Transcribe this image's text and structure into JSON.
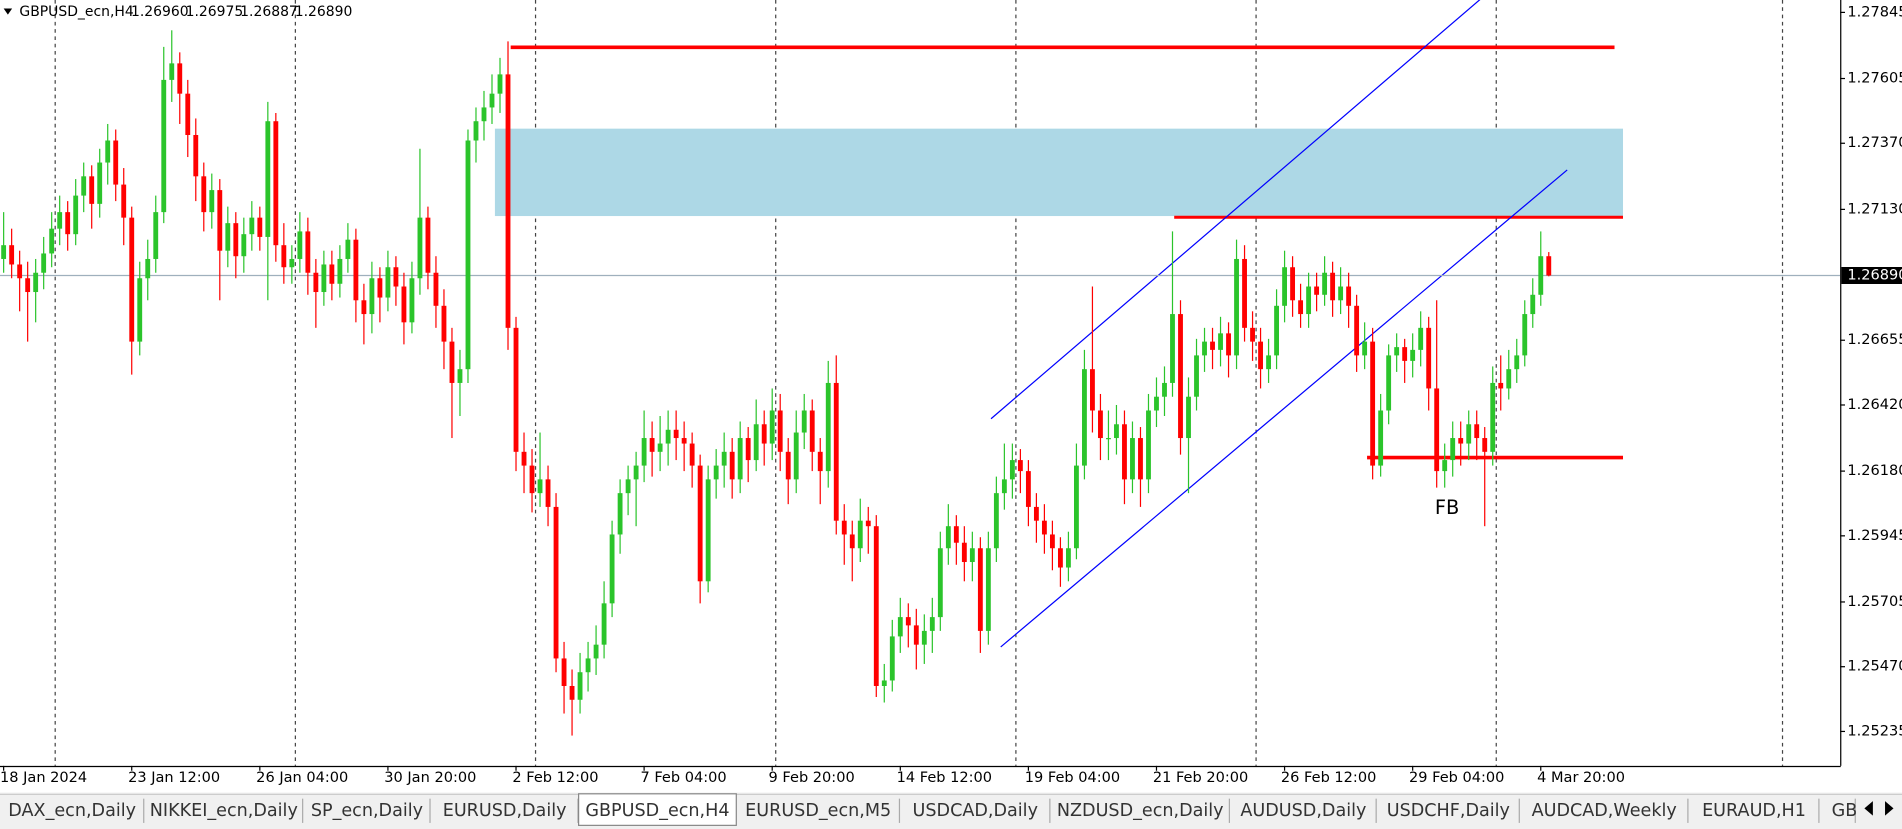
{
  "header": {
    "symbol": "GBPUSD_ecn,H4",
    "open": "1.26960",
    "high": "1.26975",
    "low": "1.26887",
    "close": "1.26890"
  },
  "chart_data": {
    "type": "candlestick",
    "up_color": "#2bc42b",
    "down_color": "#ff0000",
    "annotation": "FB",
    "ylim": [
      1.2511,
      1.2789
    ],
    "yticks": [
      1.27845,
      1.27605,
      {
        "value": 1.2737,
        "label": "1.27370"
      },
      {
        "value": 1.2713,
        "label": "1.27130"
      },
      1.26655,
      {
        "value": 1.2642,
        "label": "1.26420"
      },
      {
        "value": 1.2618,
        "label": "1.26180"
      },
      1.25945,
      1.25705,
      {
        "value": 1.2547,
        "label": "1.25470"
      },
      1.25235
    ],
    "current_price": {
      "value": 1.2689,
      "label": "1.26890"
    },
    "categories": [
      "18 Jan 2024",
      null,
      null,
      null,
      null,
      null,
      null,
      null,
      null,
      null,
      null,
      null,
      null,
      null,
      null,
      null,
      "23 Jan 12:00",
      null,
      null,
      null,
      null,
      null,
      null,
      null,
      null,
      null,
      null,
      null,
      null,
      null,
      null,
      null,
      "26 Jan 04:00",
      null,
      null,
      null,
      null,
      null,
      null,
      null,
      null,
      null,
      null,
      null,
      null,
      null,
      null,
      null,
      "30 Jan 20:00",
      null,
      null,
      null,
      null,
      null,
      null,
      null,
      null,
      null,
      null,
      null,
      null,
      null,
      null,
      null,
      "2 Feb 12:00",
      null,
      null,
      null,
      null,
      null,
      null,
      null,
      null,
      null,
      null,
      null,
      null,
      null,
      null,
      null,
      "7 Feb 04:00",
      null,
      null,
      null,
      null,
      null,
      null,
      null,
      null,
      null,
      null,
      null,
      null,
      null,
      null,
      null,
      "9 Feb 20:00",
      null,
      null,
      null,
      null,
      null,
      null,
      null,
      null,
      null,
      null,
      null,
      null,
      null,
      null,
      null,
      "14 Feb 12:00",
      null,
      null,
      null,
      null,
      null,
      null,
      null,
      null,
      null,
      null,
      null,
      null,
      null,
      null,
      null,
      "19 Feb 04:00",
      null,
      null,
      null,
      null,
      null,
      null,
      null,
      null,
      null,
      null,
      null,
      null,
      null,
      null,
      null,
      "21 Feb 20:00",
      null,
      null,
      null,
      null,
      null,
      null,
      null,
      null,
      null,
      null,
      null,
      null,
      null,
      null,
      null,
      "26 Feb 12:00",
      null,
      null,
      null,
      null,
      null,
      null,
      null,
      null,
      null,
      null,
      null,
      null,
      null,
      null,
      null,
      "29 Feb 04:00",
      null,
      null,
      null,
      null,
      null,
      null,
      null,
      null,
      null,
      null,
      null,
      null,
      null,
      null,
      null,
      "4 Mar 20:00",
      null
    ],
    "candles": [
      [
        1.2695,
        1.2712,
        1.269,
        1.27
      ],
      [
        1.27,
        1.2706,
        1.2688,
        1.2693
      ],
      [
        1.2693,
        1.2698,
        1.2676,
        1.2688
      ],
      [
        1.2688,
        1.2694,
        1.2665,
        1.2683
      ],
      [
        1.2683,
        1.2695,
        1.2672,
        1.269
      ],
      [
        1.269,
        1.2703,
        1.2684,
        1.2697
      ],
      [
        1.2697,
        1.2712,
        1.2692,
        1.2706
      ],
      [
        1.2706,
        1.2718,
        1.27,
        1.2712
      ],
      [
        1.2712,
        1.2716,
        1.2698,
        1.2704
      ],
      [
        1.2704,
        1.2724,
        1.27,
        1.2718
      ],
      [
        1.2718,
        1.273,
        1.2712,
        1.2725
      ],
      [
        1.2725,
        1.2729,
        1.2706,
        1.2715
      ],
      [
        1.2715,
        1.2735,
        1.271,
        1.273
      ],
      [
        1.273,
        1.2744,
        1.2722,
        1.2738
      ],
      [
        1.2738,
        1.2742,
        1.2716,
        1.2722
      ],
      [
        1.2722,
        1.2728,
        1.27,
        1.271
      ],
      [
        1.271,
        1.2714,
        1.2653,
        1.2665
      ],
      [
        1.2665,
        1.2694,
        1.266,
        1.2688
      ],
      [
        1.2688,
        1.2702,
        1.268,
        1.2695
      ],
      [
        1.2695,
        1.2718,
        1.269,
        1.2712
      ],
      [
        1.2712,
        1.2772,
        1.2708,
        1.276
      ],
      [
        1.276,
        1.2778,
        1.2752,
        1.2766
      ],
      [
        1.2766,
        1.277,
        1.2744,
        1.2755
      ],
      [
        1.2755,
        1.276,
        1.2732,
        1.274
      ],
      [
        1.274,
        1.2746,
        1.2716,
        1.2725
      ],
      [
        1.2725,
        1.273,
        1.2705,
        1.2712
      ],
      [
        1.2712,
        1.2726,
        1.2706,
        1.272
      ],
      [
        1.272,
        1.2724,
        1.268,
        1.2698
      ],
      [
        1.2698,
        1.2714,
        1.2692,
        1.2708
      ],
      [
        1.2708,
        1.2712,
        1.2688,
        1.2696
      ],
      [
        1.2696,
        1.271,
        1.269,
        1.2704
      ],
      [
        1.2704,
        1.2716,
        1.2698,
        1.271
      ],
      [
        1.271,
        1.2714,
        1.2698,
        1.2703
      ],
      [
        1.2703,
        1.2752,
        1.268,
        1.2745
      ],
      [
        1.2745,
        1.2748,
        1.2694,
        1.27
      ],
      [
        1.27,
        1.2708,
        1.2686,
        1.2692
      ],
      [
        1.2692,
        1.27,
        1.2686,
        1.2695
      ],
      [
        1.2695,
        1.2712,
        1.269,
        1.2705
      ],
      [
        1.2705,
        1.271,
        1.2682,
        1.269
      ],
      [
        1.269,
        1.2695,
        1.267,
        1.2683
      ],
      [
        1.2683,
        1.2698,
        1.2678,
        1.2693
      ],
      [
        1.2693,
        1.2698,
        1.268,
        1.2686
      ],
      [
        1.2686,
        1.27,
        1.2681,
        1.2695
      ],
      [
        1.2695,
        1.2708,
        1.269,
        1.2702
      ],
      [
        1.2702,
        1.2706,
        1.2672,
        1.268
      ],
      [
        1.268,
        1.2686,
        1.2664,
        1.2675
      ],
      [
        1.2675,
        1.2694,
        1.2668,
        1.2688
      ],
      [
        1.2688,
        1.2692,
        1.2672,
        1.2681
      ],
      [
        1.2681,
        1.2698,
        1.2676,
        1.2692
      ],
      [
        1.2692,
        1.2696,
        1.2678,
        1.2685
      ],
      [
        1.2685,
        1.269,
        1.2664,
        1.2672
      ],
      [
        1.2672,
        1.2694,
        1.2668,
        1.2688
      ],
      [
        1.2688,
        1.2735,
        1.2682,
        1.271
      ],
      [
        1.271,
        1.2714,
        1.2684,
        1.269
      ],
      [
        1.269,
        1.2696,
        1.267,
        1.2678
      ],
      [
        1.2678,
        1.2684,
        1.2655,
        1.2665
      ],
      [
        1.2665,
        1.267,
        1.263,
        1.265
      ],
      [
        1.265,
        1.2662,
        1.2638,
        1.2655
      ],
      [
        1.2655,
        1.2742,
        1.265,
        1.2738
      ],
      [
        1.2738,
        1.275,
        1.273,
        1.2745
      ],
      [
        1.2745,
        1.2756,
        1.2738,
        1.275
      ],
      [
        1.275,
        1.2762,
        1.2744,
        1.2755
      ],
      [
        1.2755,
        1.2768,
        1.2748,
        1.2762
      ],
      [
        1.2762,
        1.2774,
        1.2662,
        1.267
      ],
      [
        1.267,
        1.2674,
        1.2618,
        1.2625
      ],
      [
        1.2625,
        1.2632,
        1.261,
        1.262
      ],
      [
        1.262,
        1.2626,
        1.2603,
        1.261
      ],
      [
        1.261,
        1.2632,
        1.2605,
        1.2615
      ],
      [
        1.2615,
        1.262,
        1.2598,
        1.2605
      ],
      [
        1.2605,
        1.261,
        1.2545,
        1.255
      ],
      [
        1.255,
        1.2556,
        1.253,
        1.254
      ],
      [
        1.254,
        1.2546,
        1.2522,
        1.2535
      ],
      [
        1.2535,
        1.2552,
        1.253,
        1.2545
      ],
      [
        1.2545,
        1.2556,
        1.2538,
        1.255
      ],
      [
        1.255,
        1.2562,
        1.2544,
        1.2555
      ],
      [
        1.2555,
        1.2578,
        1.255,
        1.257
      ],
      [
        1.257,
        1.26,
        1.2565,
        1.2595
      ],
      [
        1.2595,
        1.2615,
        1.2588,
        1.261
      ],
      [
        1.261,
        1.262,
        1.2602,
        1.2615
      ],
      [
        1.2615,
        1.2625,
        1.2598,
        1.262
      ],
      [
        1.262,
        1.264,
        1.2614,
        1.263
      ],
      [
        1.263,
        1.2636,
        1.2616,
        1.2625
      ],
      [
        1.2625,
        1.2638,
        1.2618,
        1.2628
      ],
      [
        1.2628,
        1.264,
        1.262,
        1.2633
      ],
      [
        1.2633,
        1.264,
        1.2622,
        1.263
      ],
      [
        1.263,
        1.2636,
        1.2618,
        1.2628
      ],
      [
        1.2628,
        1.2632,
        1.2612,
        1.262
      ],
      [
        1.262,
        1.2624,
        1.257,
        1.2578
      ],
      [
        1.2578,
        1.262,
        1.2574,
        1.2615
      ],
      [
        1.2615,
        1.2626,
        1.2608,
        1.262
      ],
      [
        1.262,
        1.2632,
        1.2612,
        1.2625
      ],
      [
        1.2625,
        1.263,
        1.2608,
        1.2615
      ],
      [
        1.2615,
        1.2636,
        1.261,
        1.263
      ],
      [
        1.263,
        1.2634,
        1.2614,
        1.2622
      ],
      [
        1.2622,
        1.2644,
        1.2618,
        1.2635
      ],
      [
        1.2635,
        1.264,
        1.262,
        1.2628
      ],
      [
        1.2628,
        1.2648,
        1.2622,
        1.264
      ],
      [
        1.264,
        1.2646,
        1.2618,
        1.2625
      ],
      [
        1.2625,
        1.263,
        1.2606,
        1.2615
      ],
      [
        1.2615,
        1.264,
        1.261,
        1.2632
      ],
      [
        1.2632,
        1.2646,
        1.2626,
        1.264
      ],
      [
        1.264,
        1.2644,
        1.2618,
        1.2625
      ],
      [
        1.2625,
        1.263,
        1.2606,
        1.2618
      ],
      [
        1.2618,
        1.2658,
        1.2612,
        1.265
      ],
      [
        1.265,
        1.266,
        1.2595,
        1.26
      ],
      [
        1.26,
        1.2606,
        1.2584,
        1.2595
      ],
      [
        1.2595,
        1.26,
        1.2578,
        1.259
      ],
      [
        1.259,
        1.2608,
        1.2585,
        1.26
      ],
      [
        1.26,
        1.2605,
        1.2588,
        1.2598
      ],
      [
        1.2598,
        1.2602,
        1.2536,
        1.254
      ],
      [
        1.254,
        1.2548,
        1.2534,
        1.2542
      ],
      [
        1.2542,
        1.2564,
        1.2538,
        1.2558
      ],
      [
        1.2558,
        1.2572,
        1.2552,
        1.2565
      ],
      [
        1.2565,
        1.257,
        1.2554,
        1.2562
      ],
      [
        1.2562,
        1.2568,
        1.2546,
        1.2555
      ],
      [
        1.2555,
        1.2566,
        1.2548,
        1.256
      ],
      [
        1.256,
        1.2572,
        1.2552,
        1.2565
      ],
      [
        1.2565,
        1.2596,
        1.256,
        1.259
      ],
      [
        1.259,
        1.2606,
        1.2584,
        1.2598
      ],
      [
        1.2598,
        1.2602,
        1.2584,
        1.2592
      ],
      [
        1.2592,
        1.2598,
        1.2578,
        1.2585
      ],
      [
        1.2585,
        1.2596,
        1.2578,
        1.259
      ],
      [
        1.259,
        1.2594,
        1.2552,
        1.256
      ],
      [
        1.256,
        1.2596,
        1.2555,
        1.259
      ],
      [
        1.259,
        1.2616,
        1.2585,
        1.261
      ],
      [
        1.261,
        1.2628,
        1.2604,
        1.2615
      ],
      [
        1.2615,
        1.2628,
        1.2608,
        1.2622
      ],
      [
        1.2622,
        1.2626,
        1.261,
        1.2618
      ],
      [
        1.2618,
        1.2622,
        1.2598,
        1.2605
      ],
      [
        1.2605,
        1.261,
        1.2592,
        1.26
      ],
      [
        1.26,
        1.2606,
        1.2588,
        1.2595
      ],
      [
        1.2595,
        1.26,
        1.2582,
        1.259
      ],
      [
        1.259,
        1.2594,
        1.2576,
        1.2583
      ],
      [
        1.2583,
        1.2596,
        1.2578,
        1.259
      ],
      [
        1.259,
        1.2628,
        1.2586,
        1.262
      ],
      [
        1.262,
        1.2662,
        1.2615,
        1.2655
      ],
      [
        1.2655,
        1.2685,
        1.2632,
        1.264
      ],
      [
        1.264,
        1.2646,
        1.2622,
        1.263
      ],
      [
        1.263,
        1.264,
        1.2622,
        1.263
      ],
      [
        1.263,
        1.2642,
        1.2624,
        1.2635
      ],
      [
        1.2635,
        1.264,
        1.2606,
        1.2615
      ],
      [
        1.2615,
        1.2636,
        1.261,
        1.263
      ],
      [
        1.263,
        1.2634,
        1.2605,
        1.2615
      ],
      [
        1.2615,
        1.2646,
        1.261,
        1.264
      ],
      [
        1.264,
        1.2652,
        1.2634,
        1.2645
      ],
      [
        1.2645,
        1.2656,
        1.2638,
        1.265
      ],
      [
        1.265,
        1.2705,
        1.2645,
        1.2675
      ],
      [
        1.2675,
        1.268,
        1.2624,
        1.263
      ],
      [
        1.263,
        1.2652,
        1.261,
        1.2645
      ],
      [
        1.2645,
        1.2666,
        1.264,
        1.266
      ],
      [
        1.266,
        1.267,
        1.2654,
        1.2665
      ],
      [
        1.2665,
        1.267,
        1.2655,
        1.2662
      ],
      [
        1.2662,
        1.2674,
        1.2656,
        1.2668
      ],
      [
        1.2668,
        1.2672,
        1.2652,
        1.266
      ],
      [
        1.266,
        1.2702,
        1.2655,
        1.2695
      ],
      [
        1.2695,
        1.27,
        1.2665,
        1.267
      ],
      [
        1.267,
        1.2676,
        1.2658,
        1.2665
      ],
      [
        1.2665,
        1.267,
        1.2648,
        1.2655
      ],
      [
        1.2655,
        1.2666,
        1.265,
        1.266
      ],
      [
        1.266,
        1.2684,
        1.2655,
        1.2678
      ],
      [
        1.2678,
        1.2698,
        1.2672,
        1.2692
      ],
      [
        1.2692,
        1.2696,
        1.2674,
        1.268
      ],
      [
        1.268,
        1.2686,
        1.267,
        1.2675
      ],
      [
        1.2675,
        1.269,
        1.267,
        1.2685
      ],
      [
        1.2685,
        1.269,
        1.2676,
        1.2682
      ],
      [
        1.2682,
        1.2696,
        1.2678,
        1.269
      ],
      [
        1.269,
        1.2694,
        1.2674,
        1.268
      ],
      [
        1.268,
        1.2692,
        1.2675,
        1.2685
      ],
      [
        1.2685,
        1.269,
        1.267,
        1.2678
      ],
      [
        1.2678,
        1.2682,
        1.2654,
        1.266
      ],
      [
        1.266,
        1.2672,
        1.2655,
        1.2665
      ],
      [
        1.2665,
        1.267,
        1.2615,
        1.262
      ],
      [
        1.262,
        1.2646,
        1.2616,
        1.264
      ],
      [
        1.264,
        1.2664,
        1.2635,
        1.266
      ],
      [
        1.266,
        1.2668,
        1.2654,
        1.2663
      ],
      [
        1.2663,
        1.2666,
        1.265,
        1.2658
      ],
      [
        1.2658,
        1.2668,
        1.2652,
        1.2662
      ],
      [
        1.2662,
        1.2676,
        1.2656,
        1.267
      ],
      [
        1.267,
        1.2674,
        1.264,
        1.2648
      ],
      [
        1.2648,
        1.268,
        1.2612,
        1.2618
      ],
      [
        1.2618,
        1.2628,
        1.2612,
        1.2622
      ],
      [
        1.2622,
        1.2636,
        1.2616,
        1.263
      ],
      [
        1.263,
        1.2636,
        1.262,
        1.2628
      ],
      [
        1.2628,
        1.264,
        1.2622,
        1.2635
      ],
      [
        1.2635,
        1.264,
        1.2622,
        1.263
      ],
      [
        1.263,
        1.2634,
        1.2598,
        1.2625
      ],
      [
        1.2625,
        1.2656,
        1.262,
        1.265
      ],
      [
        1.265,
        1.266,
        1.264,
        1.2648
      ],
      [
        1.2648,
        1.2662,
        1.2644,
        1.2655
      ],
      [
        1.2655,
        1.2666,
        1.265,
        1.266
      ],
      [
        1.266,
        1.268,
        1.2656,
        1.2675
      ],
      [
        1.2675,
        1.2688,
        1.267,
        1.2682
      ],
      [
        1.2682,
        1.2705,
        1.2678,
        1.2696
      ],
      [
        1.2696,
        1.26975,
        1.26887,
        1.2689
      ]
    ]
  },
  "tabs": [
    "DAX_ecn,Daily",
    "NIKKEI_ecn,Daily",
    "SP_ecn,Daily",
    "EURUSD,Daily",
    "GBPUSD_ecn,H4",
    "EURUSD_ecn,M5",
    "USDCAD,Daily",
    "NZDUSD_ecn,Daily",
    "AUDUSD,Daily",
    "USDCHF,Daily",
    "AUDCAD,Weekly",
    "EURAUD,H1",
    "GBI"
  ],
  "active_tab": 4
}
